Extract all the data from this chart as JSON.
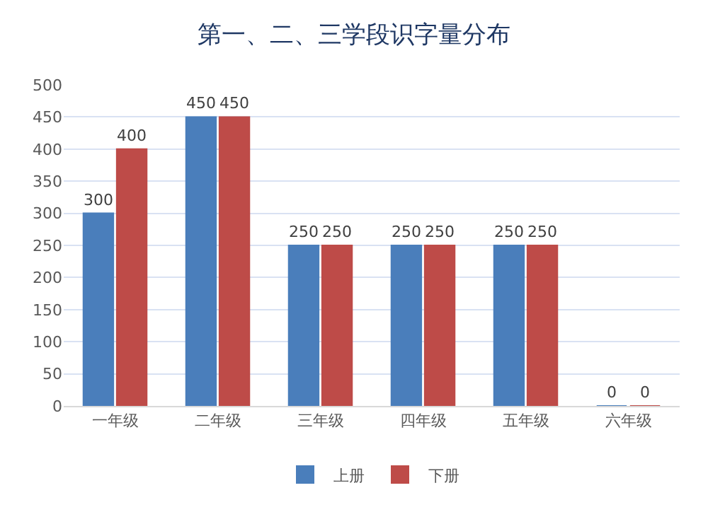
{
  "chart_data": {
    "type": "bar",
    "title": "第一、二、三学段识字量分布",
    "categories": [
      "一年级",
      "二年级",
      "三年级",
      "四年级",
      "五年级",
      "六年级"
    ],
    "series": [
      {
        "name": "上册",
        "color": "#4a7ebb",
        "values": [
          300,
          450,
          250,
          250,
          250,
          0
        ]
      },
      {
        "name": "下册",
        "color": "#be4b48",
        "values": [
          400,
          450,
          250,
          250,
          250,
          0
        ]
      }
    ],
    "ylim": [
      0,
      500
    ],
    "yticks": [
      0,
      50,
      100,
      150,
      200,
      250,
      300,
      350,
      400,
      450,
      500
    ],
    "grid": "y",
    "legend": "bottom",
    "data_labels": true
  }
}
